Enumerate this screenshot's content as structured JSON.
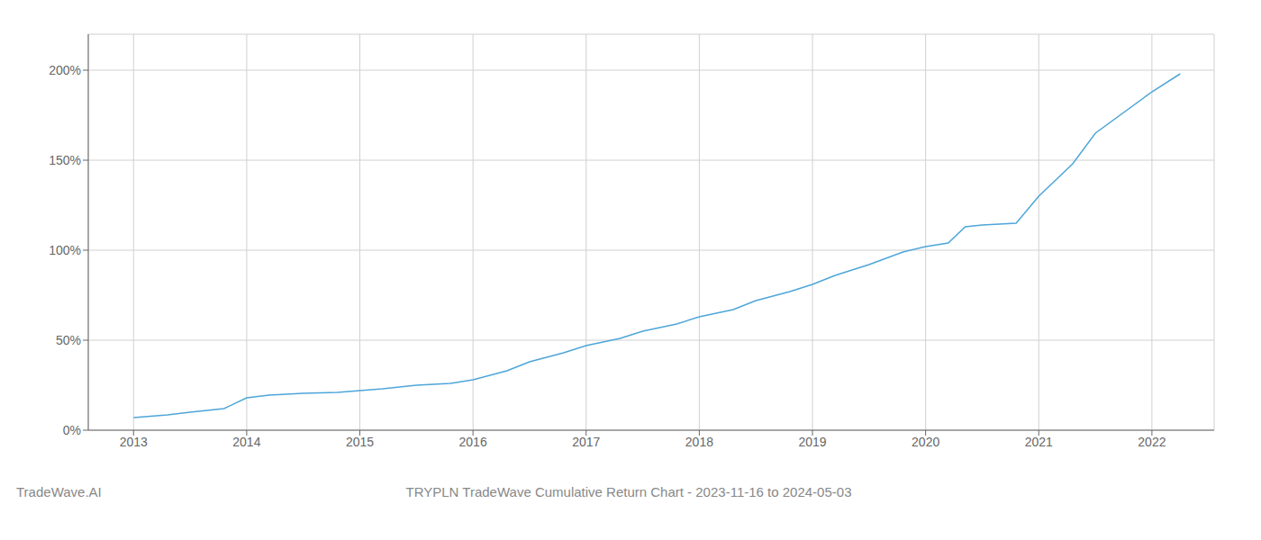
{
  "chart_data": {
    "type": "line",
    "title": "TRYPLN TradeWave Cumulative Return Chart - 2023-11-16 to 2024-05-03",
    "annotations": [
      "TradeWave.AI"
    ],
    "x": [
      2013.0,
      2013.1,
      2013.3,
      2013.5,
      2013.8,
      2014.0,
      2014.2,
      2014.5,
      2014.8,
      2015.0,
      2015.2,
      2015.5,
      2015.8,
      2016.0,
      2016.3,
      2016.5,
      2016.8,
      2017.0,
      2017.3,
      2017.5,
      2017.8,
      2018.0,
      2018.3,
      2018.5,
      2018.8,
      2019.0,
      2019.2,
      2019.5,
      2019.8,
      2020.0,
      2020.1,
      2020.2,
      2020.35,
      2020.5,
      2020.8,
      2021.0,
      2021.3,
      2021.5,
      2022.0,
      2022.25
    ],
    "values": [
      7,
      7.5,
      8.5,
      10,
      12,
      18,
      19.5,
      20.5,
      21,
      22,
      23,
      25,
      26,
      28,
      33,
      38,
      43,
      47,
      51,
      55,
      59,
      63,
      67,
      72,
      77,
      81,
      86,
      92,
      99,
      102,
      103,
      104,
      113,
      114,
      115,
      130,
      148,
      165,
      188,
      198
    ],
    "color": "#4da6d9",
    "xlim": [
      2012.6,
      2022.55
    ],
    "xticks": [
      2013,
      2014,
      2015,
      2016,
      2017,
      2018,
      2019,
      2020,
      2021,
      2022
    ],
    "ylim": [
      0,
      220
    ],
    "yticks": [
      {
        "value": 0,
        "label": "0%"
      },
      {
        "value": 50,
        "label": "50%"
      },
      {
        "value": 100,
        "label": "100%"
      },
      {
        "value": 150,
        "label": "150%"
      },
      {
        "value": 200,
        "label": "200%"
      }
    ],
    "grid": true
  }
}
